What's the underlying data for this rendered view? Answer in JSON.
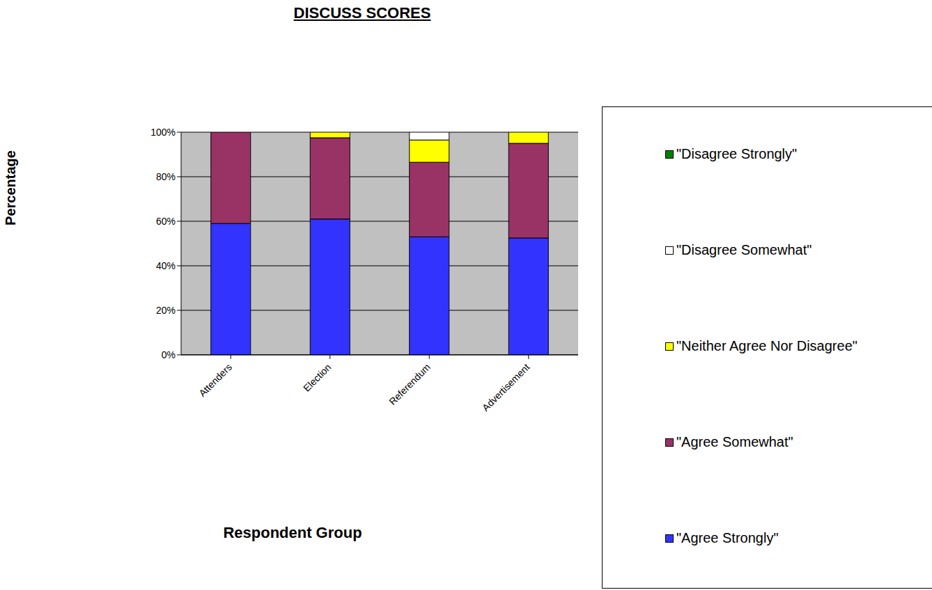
{
  "chart_data": {
    "type": "bar",
    "title": "DISCUSS SCORES",
    "xlabel": "Respondent Group",
    "ylabel": "Percentage",
    "stacked": true,
    "grid": true,
    "legend": "right",
    "categories": [
      "Attenders",
      "Election",
      "Referendum",
      "Advertisement"
    ],
    "series": [
      {
        "name": "\"Agree Strongly\"",
        "color": "#3333ff",
        "values": [
          59,
          61,
          53,
          52.5
        ]
      },
      {
        "name": "\"Agree Somewhat\"",
        "color": "#993366",
        "values": [
          41,
          36.5,
          33.5,
          42.5
        ]
      },
      {
        "name": "\"Neither Agree Nor Disagree\"",
        "color": "#ffff00",
        "values": [
          0,
          2.5,
          10,
          5
        ]
      },
      {
        "name": "\"Disagree Somewhat\"",
        "color": "#ffffff",
        "values": [
          0,
          0,
          3.5,
          0
        ]
      },
      {
        "name": "\"Disagree Strongly\"",
        "color": "#008000",
        "values": [
          0,
          0,
          0,
          0
        ]
      }
    ],
    "ylim": [
      0,
      100
    ],
    "yticks": [
      {
        "value": 0,
        "label": "0%"
      },
      {
        "value": 20,
        "label": "20%"
      },
      {
        "value": 40,
        "label": "40%"
      },
      {
        "value": 60,
        "label": "60%"
      },
      {
        "value": 80,
        "label": "80%"
      },
      {
        "value": 100,
        "label": "100%"
      }
    ]
  }
}
